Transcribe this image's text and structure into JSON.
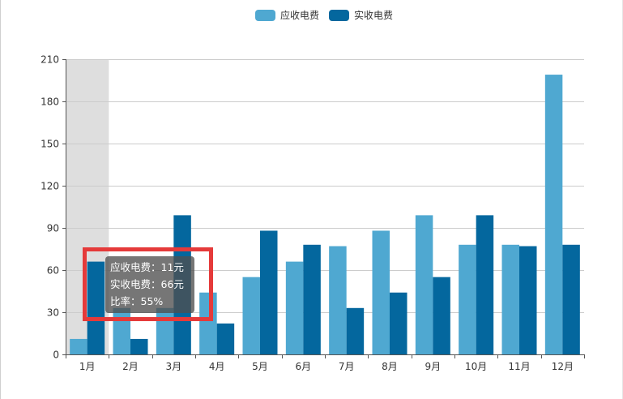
{
  "legend": {
    "items": [
      {
        "label": "应收电费",
        "color": "#4FA8D1"
      },
      {
        "label": "实收电费",
        "color": "#04679E"
      }
    ]
  },
  "tooltip": {
    "line1": "应收电费：11元",
    "line2": "实收电费：66元",
    "line3": "比率：55%"
  },
  "chart_data": {
    "type": "bar",
    "categories": [
      "1月",
      "2月",
      "3月",
      "4月",
      "5月",
      "6月",
      "7月",
      "8月",
      "9月",
      "10月",
      "11月",
      "12月"
    ],
    "series": [
      {
        "name": "应收电费",
        "color": "#4FA8D1",
        "values": [
          11,
          33,
          33,
          44,
          55,
          66,
          77,
          88,
          99,
          78,
          78,
          199
        ]
      },
      {
        "name": "实收电费",
        "color": "#04679E",
        "values": [
          66,
          11,
          99,
          22,
          88,
          78,
          33,
          44,
          55,
          99,
          77,
          78
        ]
      }
    ],
    "ylim": [
      0,
      210
    ],
    "yticks": [
      0,
      30,
      60,
      90,
      120,
      150,
      180,
      210
    ],
    "grid": true,
    "highlighted_category": "1月",
    "legend_position": "top-center"
  }
}
